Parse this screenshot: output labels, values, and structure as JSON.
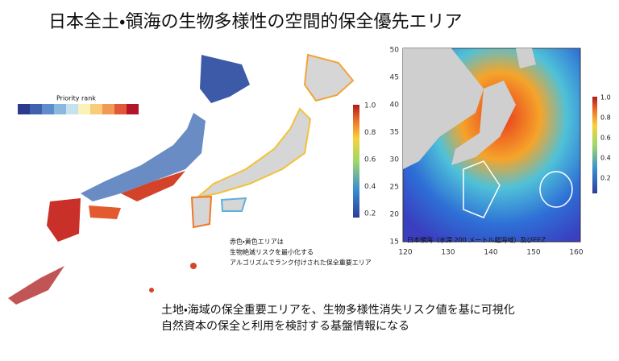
{
  "title": "日本全土・領海の生物多様性の空間的保全優先エリア",
  "left_map": {
    "legend_title": "Priority rank"
  },
  "middle_map": {
    "colorbar_ticks": [
      "1.0",
      "0.8",
      "0.6",
      "0.4",
      "0.2"
    ],
    "note": [
      "赤色・黄色エリアは",
      "生物絶滅リスクを最小化する",
      "アルゴリズムでランク付けされた保全重要エリア"
    ]
  },
  "right_map": {
    "y_ticks": [
      "50",
      "45",
      "40",
      "35",
      "30",
      "25",
      "20",
      "15"
    ],
    "x_ticks": [
      "120",
      "130",
      "140",
      "150",
      "160"
    ],
    "caption": "日本領海（水深 200 メートル超海域）及びEEZ",
    "colorbar_ticks": [
      "1.0",
      "0.8",
      "0.6",
      "0.4",
      "0.2"
    ]
  },
  "body": [
    "土地・海域の保全重要エリアを、生物多様性消失リスク値を基に可視化",
    "自然資本の保全と利用を検討する基盤情報になる"
  ]
}
